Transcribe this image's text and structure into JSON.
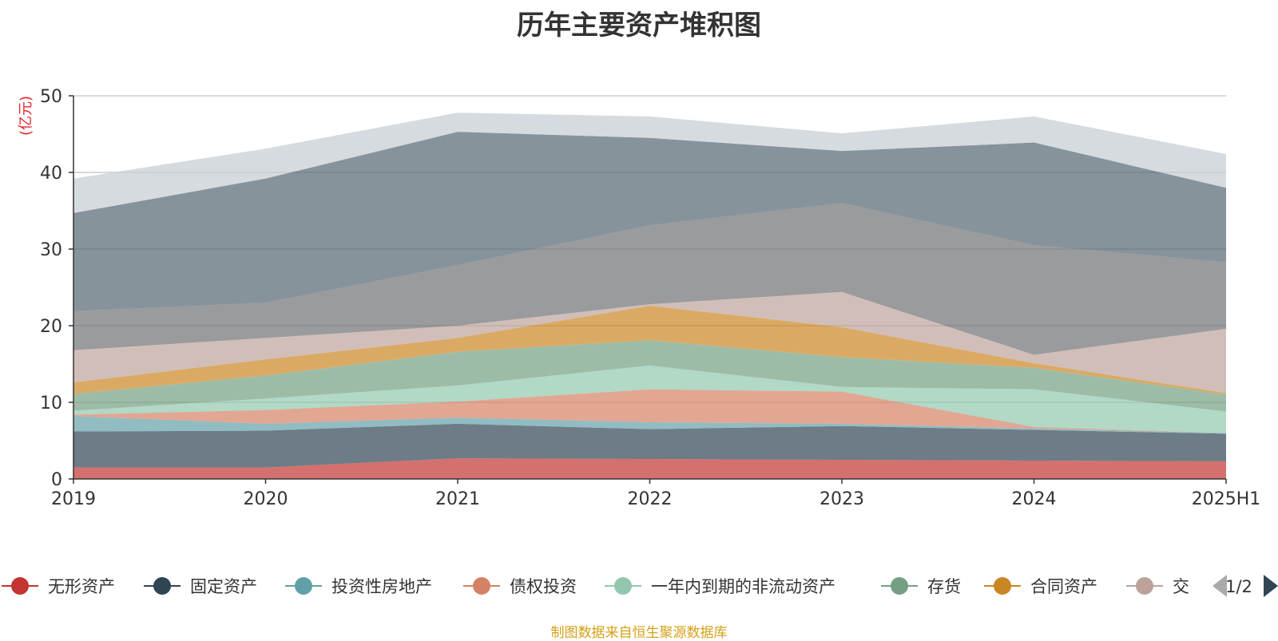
{
  "chart_data": {
    "type": "area",
    "stacked": true,
    "title": "历年主要资产堆积图",
    "ylabel": "(亿元)",
    "ylim": [
      0,
      50
    ],
    "yticks": [
      0,
      10,
      20,
      30,
      40,
      50
    ],
    "categories": [
      "2019",
      "2020",
      "2021",
      "2022",
      "2023",
      "2024",
      "2025H1"
    ],
    "grid": true,
    "legend_position": "bottom",
    "series": [
      {
        "name": "无形资产",
        "color": "#c23531",
        "values": [
          1.5,
          1.5,
          2.7,
          2.6,
          2.5,
          2.4,
          2.3
        ]
      },
      {
        "name": "固定资产",
        "color": "#2f4554",
        "values": [
          4.7,
          4.8,
          4.5,
          3.9,
          4.4,
          4.0,
          3.6
        ]
      },
      {
        "name": "投资性房地产",
        "color": "#61a0a8",
        "values": [
          2.0,
          0.9,
          0.8,
          0.9,
          0.3,
          0.2,
          0.1
        ]
      },
      {
        "name": "债权投资",
        "color": "#d48265",
        "values": [
          0.2,
          1.8,
          2.1,
          4.3,
          4.2,
          0.2,
          0.0
        ]
      },
      {
        "name": "一年内到期的非流动资产",
        "color": "#91c7ae",
        "values": [
          0.5,
          1.5,
          2.1,
          3.1,
          0.6,
          4.9,
          2.8
        ]
      },
      {
        "name": "存货",
        "color": "#749f83",
        "values": [
          2.2,
          3.0,
          4.4,
          3.3,
          3.9,
          2.8,
          2.2
        ]
      },
      {
        "name": "合同资产",
        "color": "#ca8622",
        "values": [
          1.5,
          2.1,
          1.8,
          4.5,
          3.9,
          0.6,
          0.2
        ]
      },
      {
        "name": "交",
        "color": "#bda29a",
        "values": [
          4.2,
          2.8,
          1.6,
          0.2,
          4.6,
          1.1,
          8.4
        ]
      },
      {
        "values": [
          5.1,
          4.6,
          7.9,
          10.3,
          11.6,
          14.3,
          8.7
        ]
      },
      {
        "values": [
          12.8,
          16.2,
          17.4,
          11.4,
          6.8,
          13.4,
          9.7
        ]
      },
      {
        "values": [
          4.5,
          3.9,
          2.5,
          2.8,
          2.3,
          3.4,
          4.4
        ]
      }
    ]
  },
  "legend_colors": [
    "#c23531",
    "#2f4554",
    "#61a0a8",
    "#d48265",
    "#91c7ae",
    "#749f83",
    "#ca8622",
    "#bda29a"
  ],
  "extra_area_colors": [
    "#6e7074",
    "#546570",
    "#c4ccd3"
  ],
  "legend": {
    "page_text": "1/2"
  },
  "source": "制图数据来自恒生聚源数据库"
}
